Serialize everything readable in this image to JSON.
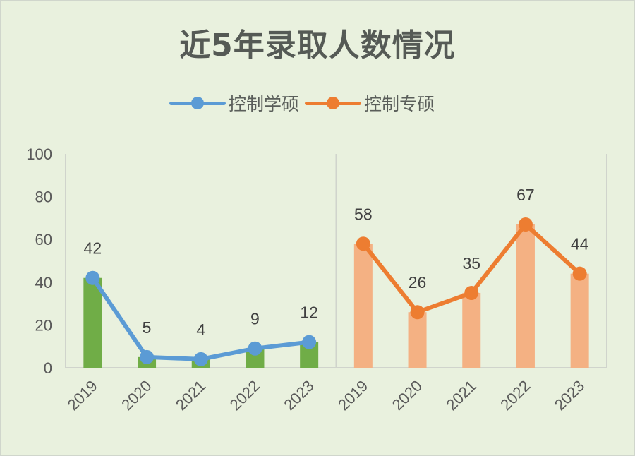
{
  "title": "近5年录取人数情况",
  "legend": [
    {
      "label": "控制学硕",
      "color": "#5b9bd5"
    },
    {
      "label": "控制专硕",
      "color": "#ed7d31"
    }
  ],
  "colors": {
    "background": "#e9f1de",
    "bar_academic": "#70ad47",
    "bar_professional": "#f4b183",
    "line_academic": "#5b9bd5",
    "line_professional": "#ed7d31",
    "axis": "#d0d4cc",
    "text": "#404040"
  },
  "chart_data": {
    "type": "bar",
    "title": "近5年录取人数情况",
    "xlabel": "",
    "ylabel": "",
    "ylim": [
      0,
      100
    ],
    "yticks": [
      0,
      20,
      40,
      60,
      80,
      100
    ],
    "categories": [
      "2019",
      "2020",
      "2021",
      "2022",
      "2023",
      "2019",
      "2020",
      "2021",
      "2022",
      "2023"
    ],
    "series": [
      {
        "name": "控制学硕",
        "type": "bar+line",
        "categories": [
          "2019",
          "2020",
          "2021",
          "2022",
          "2023"
        ],
        "values": [
          42,
          5,
          4,
          9,
          12
        ]
      },
      {
        "name": "控制专硕",
        "type": "bar+line",
        "categories": [
          "2019",
          "2020",
          "2021",
          "2022",
          "2023"
        ],
        "values": [
          58,
          26,
          35,
          67,
          44
        ]
      }
    ],
    "data_labels": true,
    "grid": false,
    "legend_position": "top"
  }
}
